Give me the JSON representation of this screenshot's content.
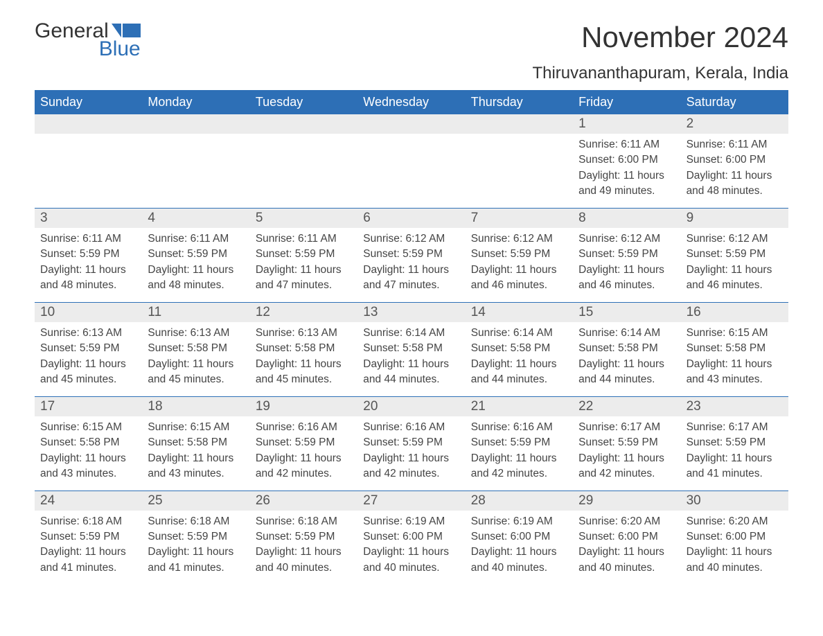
{
  "logo": {
    "text_general": "General",
    "text_blue": "Blue"
  },
  "title": "November 2024",
  "location": "Thiruvananthapuram, Kerala, India",
  "colors": {
    "header_bg": "#2d6fb6",
    "header_fg": "#ffffff",
    "daynum_bg": "#ececec",
    "text": "#333333",
    "row_border": "#2d6fb6"
  },
  "weekdays": [
    "Sunday",
    "Monday",
    "Tuesday",
    "Wednesday",
    "Thursday",
    "Friday",
    "Saturday"
  ],
  "weeks": [
    [
      null,
      null,
      null,
      null,
      null,
      {
        "n": "1",
        "sunrise": "6:11 AM",
        "sunset": "6:00 PM",
        "daylight": "11 hours and 49 minutes."
      },
      {
        "n": "2",
        "sunrise": "6:11 AM",
        "sunset": "6:00 PM",
        "daylight": "11 hours and 48 minutes."
      }
    ],
    [
      {
        "n": "3",
        "sunrise": "6:11 AM",
        "sunset": "5:59 PM",
        "daylight": "11 hours and 48 minutes."
      },
      {
        "n": "4",
        "sunrise": "6:11 AM",
        "sunset": "5:59 PM",
        "daylight": "11 hours and 48 minutes."
      },
      {
        "n": "5",
        "sunrise": "6:11 AM",
        "sunset": "5:59 PM",
        "daylight": "11 hours and 47 minutes."
      },
      {
        "n": "6",
        "sunrise": "6:12 AM",
        "sunset": "5:59 PM",
        "daylight": "11 hours and 47 minutes."
      },
      {
        "n": "7",
        "sunrise": "6:12 AM",
        "sunset": "5:59 PM",
        "daylight": "11 hours and 46 minutes."
      },
      {
        "n": "8",
        "sunrise": "6:12 AM",
        "sunset": "5:59 PM",
        "daylight": "11 hours and 46 minutes."
      },
      {
        "n": "9",
        "sunrise": "6:12 AM",
        "sunset": "5:59 PM",
        "daylight": "11 hours and 46 minutes."
      }
    ],
    [
      {
        "n": "10",
        "sunrise": "6:13 AM",
        "sunset": "5:59 PM",
        "daylight": "11 hours and 45 minutes."
      },
      {
        "n": "11",
        "sunrise": "6:13 AM",
        "sunset": "5:58 PM",
        "daylight": "11 hours and 45 minutes."
      },
      {
        "n": "12",
        "sunrise": "6:13 AM",
        "sunset": "5:58 PM",
        "daylight": "11 hours and 45 minutes."
      },
      {
        "n": "13",
        "sunrise": "6:14 AM",
        "sunset": "5:58 PM",
        "daylight": "11 hours and 44 minutes."
      },
      {
        "n": "14",
        "sunrise": "6:14 AM",
        "sunset": "5:58 PM",
        "daylight": "11 hours and 44 minutes."
      },
      {
        "n": "15",
        "sunrise": "6:14 AM",
        "sunset": "5:58 PM",
        "daylight": "11 hours and 44 minutes."
      },
      {
        "n": "16",
        "sunrise": "6:15 AM",
        "sunset": "5:58 PM",
        "daylight": "11 hours and 43 minutes."
      }
    ],
    [
      {
        "n": "17",
        "sunrise": "6:15 AM",
        "sunset": "5:58 PM",
        "daylight": "11 hours and 43 minutes."
      },
      {
        "n": "18",
        "sunrise": "6:15 AM",
        "sunset": "5:58 PM",
        "daylight": "11 hours and 43 minutes."
      },
      {
        "n": "19",
        "sunrise": "6:16 AM",
        "sunset": "5:59 PM",
        "daylight": "11 hours and 42 minutes."
      },
      {
        "n": "20",
        "sunrise": "6:16 AM",
        "sunset": "5:59 PM",
        "daylight": "11 hours and 42 minutes."
      },
      {
        "n": "21",
        "sunrise": "6:16 AM",
        "sunset": "5:59 PM",
        "daylight": "11 hours and 42 minutes."
      },
      {
        "n": "22",
        "sunrise": "6:17 AM",
        "sunset": "5:59 PM",
        "daylight": "11 hours and 42 minutes."
      },
      {
        "n": "23",
        "sunrise": "6:17 AM",
        "sunset": "5:59 PM",
        "daylight": "11 hours and 41 minutes."
      }
    ],
    [
      {
        "n": "24",
        "sunrise": "6:18 AM",
        "sunset": "5:59 PM",
        "daylight": "11 hours and 41 minutes."
      },
      {
        "n": "25",
        "sunrise": "6:18 AM",
        "sunset": "5:59 PM",
        "daylight": "11 hours and 41 minutes."
      },
      {
        "n": "26",
        "sunrise": "6:18 AM",
        "sunset": "5:59 PM",
        "daylight": "11 hours and 40 minutes."
      },
      {
        "n": "27",
        "sunrise": "6:19 AM",
        "sunset": "6:00 PM",
        "daylight": "11 hours and 40 minutes."
      },
      {
        "n": "28",
        "sunrise": "6:19 AM",
        "sunset": "6:00 PM",
        "daylight": "11 hours and 40 minutes."
      },
      {
        "n": "29",
        "sunrise": "6:20 AM",
        "sunset": "6:00 PM",
        "daylight": "11 hours and 40 minutes."
      },
      {
        "n": "30",
        "sunrise": "6:20 AM",
        "sunset": "6:00 PM",
        "daylight": "11 hours and 40 minutes."
      }
    ]
  ],
  "labels": {
    "sunrise": "Sunrise: ",
    "sunset": "Sunset: ",
    "daylight": "Daylight: "
  }
}
